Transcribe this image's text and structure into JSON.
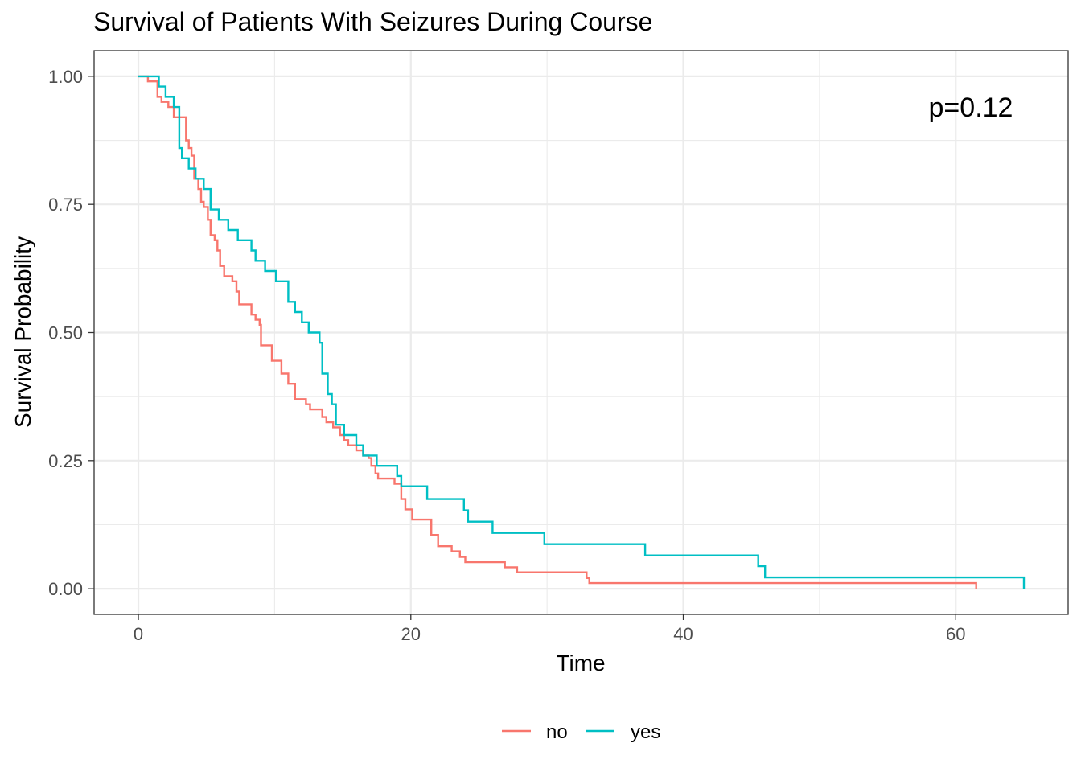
{
  "chart_data": {
    "type": "line",
    "subtype": "kaplan-meier step",
    "title": "Survival of Patients With Seizures During Course",
    "xlabel": "Time",
    "ylabel": "Survival Probability",
    "xlim": [
      -3.25,
      68.25
    ],
    "ylim": [
      -0.05,
      1.05
    ],
    "x_ticks": [
      0,
      20,
      40,
      60
    ],
    "y_ticks": [
      0,
      0.25,
      0.5,
      0.75,
      1
    ],
    "y_tick_labels": [
      "0.00",
      "0.25",
      "0.50",
      "0.75",
      "1.00"
    ],
    "x_tick_labels": [
      "0",
      "20",
      "40",
      "60"
    ],
    "grid": true,
    "legend_position": "bottom",
    "annotation": "p=0.12",
    "series": [
      {
        "name": "no",
        "color": "#F8766D",
        "points": [
          [
            0,
            1
          ],
          [
            0.7,
            1
          ],
          [
            0.7,
            0.99
          ],
          [
            1.4,
            0.99
          ],
          [
            1.4,
            0.96
          ],
          [
            1.7,
            0.96
          ],
          [
            1.7,
            0.95
          ],
          [
            2.2,
            0.95
          ],
          [
            2.2,
            0.94
          ],
          [
            2.6,
            0.94
          ],
          [
            2.6,
            0.92
          ],
          [
            3.5,
            0.92
          ],
          [
            3.5,
            0.875
          ],
          [
            3.7,
            0.875
          ],
          [
            3.7,
            0.86
          ],
          [
            3.9,
            0.86
          ],
          [
            3.9,
            0.845
          ],
          [
            4.1,
            0.845
          ],
          [
            4.1,
            0.8
          ],
          [
            4.4,
            0.8
          ],
          [
            4.4,
            0.78
          ],
          [
            4.6,
            0.78
          ],
          [
            4.6,
            0.755
          ],
          [
            4.8,
            0.755
          ],
          [
            4.8,
            0.745
          ],
          [
            5.1,
            0.745
          ],
          [
            5.1,
            0.72
          ],
          [
            5.3,
            0.72
          ],
          [
            5.3,
            0.69
          ],
          [
            5.6,
            0.69
          ],
          [
            5.6,
            0.68
          ],
          [
            5.8,
            0.68
          ],
          [
            5.8,
            0.66
          ],
          [
            6.0,
            0.66
          ],
          [
            6.0,
            0.63
          ],
          [
            6.3,
            0.63
          ],
          [
            6.3,
            0.61
          ],
          [
            6.9,
            0.61
          ],
          [
            6.9,
            0.6
          ],
          [
            7.2,
            0.6
          ],
          [
            7.2,
            0.58
          ],
          [
            7.4,
            0.58
          ],
          [
            7.4,
            0.555
          ],
          [
            8.3,
            0.555
          ],
          [
            8.3,
            0.535
          ],
          [
            8.6,
            0.535
          ],
          [
            8.6,
            0.525
          ],
          [
            8.9,
            0.525
          ],
          [
            8.9,
            0.515
          ],
          [
            9.0,
            0.515
          ],
          [
            9.0,
            0.475
          ],
          [
            9.8,
            0.475
          ],
          [
            9.8,
            0.445
          ],
          [
            10.5,
            0.445
          ],
          [
            10.5,
            0.42
          ],
          [
            11.0,
            0.42
          ],
          [
            11.0,
            0.4
          ],
          [
            11.5,
            0.4
          ],
          [
            11.5,
            0.37
          ],
          [
            12.3,
            0.37
          ],
          [
            12.3,
            0.36
          ],
          [
            12.6,
            0.36
          ],
          [
            12.6,
            0.35
          ],
          [
            13.5,
            0.35
          ],
          [
            13.5,
            0.335
          ],
          [
            13.8,
            0.335
          ],
          [
            13.8,
            0.325
          ],
          [
            14.3,
            0.325
          ],
          [
            14.3,
            0.315
          ],
          [
            14.8,
            0.315
          ],
          [
            14.8,
            0.3
          ],
          [
            15.1,
            0.3
          ],
          [
            15.1,
            0.29
          ],
          [
            15.4,
            0.29
          ],
          [
            15.4,
            0.28
          ],
          [
            16.0,
            0.28
          ],
          [
            16.0,
            0.27
          ],
          [
            16.5,
            0.27
          ],
          [
            16.5,
            0.26
          ],
          [
            16.9,
            0.26
          ],
          [
            16.9,
            0.255
          ],
          [
            17.1,
            0.255
          ],
          [
            17.1,
            0.24
          ],
          [
            17.4,
            0.24
          ],
          [
            17.4,
            0.225
          ],
          [
            17.6,
            0.225
          ],
          [
            17.6,
            0.215
          ],
          [
            18.8,
            0.215
          ],
          [
            18.8,
            0.205
          ],
          [
            19.3,
            0.205
          ],
          [
            19.3,
            0.175
          ],
          [
            19.6,
            0.175
          ],
          [
            19.6,
            0.155
          ],
          [
            20.1,
            0.155
          ],
          [
            20.1,
            0.135
          ],
          [
            21.5,
            0.135
          ],
          [
            21.5,
            0.105
          ],
          [
            22.0,
            0.105
          ],
          [
            22.0,
            0.083
          ],
          [
            23.0,
            0.083
          ],
          [
            23.0,
            0.073
          ],
          [
            23.6,
            0.073
          ],
          [
            23.6,
            0.062
          ],
          [
            24.0,
            0.062
          ],
          [
            24.0,
            0.052
          ],
          [
            26.9,
            0.052
          ],
          [
            26.9,
            0.042
          ],
          [
            27.8,
            0.042
          ],
          [
            27.8,
            0.032
          ],
          [
            32.9,
            0.032
          ],
          [
            32.9,
            0.021
          ],
          [
            33.1,
            0.021
          ],
          [
            33.1,
            0.011
          ],
          [
            61.5,
            0.011
          ],
          [
            61.5,
            0.0
          ]
        ]
      },
      {
        "name": "yes",
        "color": "#00BFC4",
        "points": [
          [
            0,
            1
          ],
          [
            1.5,
            1
          ],
          [
            1.5,
            0.98
          ],
          [
            2.0,
            0.98
          ],
          [
            2.0,
            0.96
          ],
          [
            2.6,
            0.96
          ],
          [
            2.6,
            0.94
          ],
          [
            3.0,
            0.94
          ],
          [
            3.0,
            0.86
          ],
          [
            3.2,
            0.86
          ],
          [
            3.2,
            0.84
          ],
          [
            3.7,
            0.84
          ],
          [
            3.7,
            0.82
          ],
          [
            4.2,
            0.82
          ],
          [
            4.2,
            0.8
          ],
          [
            4.8,
            0.8
          ],
          [
            4.8,
            0.78
          ],
          [
            5.3,
            0.78
          ],
          [
            5.3,
            0.74
          ],
          [
            5.9,
            0.74
          ],
          [
            5.9,
            0.72
          ],
          [
            6.6,
            0.72
          ],
          [
            6.6,
            0.7
          ],
          [
            7.3,
            0.7
          ],
          [
            7.3,
            0.68
          ],
          [
            8.3,
            0.68
          ],
          [
            8.3,
            0.66
          ],
          [
            8.6,
            0.66
          ],
          [
            8.6,
            0.64
          ],
          [
            9.3,
            0.64
          ],
          [
            9.3,
            0.62
          ],
          [
            10.1,
            0.62
          ],
          [
            10.1,
            0.6
          ],
          [
            11.0,
            0.6
          ],
          [
            11.0,
            0.56
          ],
          [
            11.5,
            0.56
          ],
          [
            11.5,
            0.54
          ],
          [
            12.0,
            0.54
          ],
          [
            12.0,
            0.52
          ],
          [
            12.5,
            0.52
          ],
          [
            12.5,
            0.5
          ],
          [
            13.3,
            0.5
          ],
          [
            13.3,
            0.48
          ],
          [
            13.5,
            0.48
          ],
          [
            13.5,
            0.42
          ],
          [
            13.9,
            0.42
          ],
          [
            13.9,
            0.38
          ],
          [
            14.2,
            0.38
          ],
          [
            14.2,
            0.36
          ],
          [
            14.5,
            0.36
          ],
          [
            14.5,
            0.32
          ],
          [
            15.1,
            0.32
          ],
          [
            15.1,
            0.3
          ],
          [
            16.0,
            0.3
          ],
          [
            16.0,
            0.28
          ],
          [
            16.5,
            0.28
          ],
          [
            16.5,
            0.26
          ],
          [
            17.5,
            0.26
          ],
          [
            17.5,
            0.24
          ],
          [
            19.0,
            0.24
          ],
          [
            19.0,
            0.22
          ],
          [
            19.3,
            0.22
          ],
          [
            19.3,
            0.2
          ],
          [
            21.2,
            0.2
          ],
          [
            21.2,
            0.175
          ],
          [
            23.9,
            0.175
          ],
          [
            23.9,
            0.153
          ],
          [
            24.2,
            0.153
          ],
          [
            24.2,
            0.131
          ],
          [
            26.0,
            0.131
          ],
          [
            26.0,
            0.109
          ],
          [
            29.8,
            0.109
          ],
          [
            29.8,
            0.087
          ],
          [
            37.2,
            0.087
          ],
          [
            37.2,
            0.065
          ],
          [
            45.5,
            0.065
          ],
          [
            45.5,
            0.044
          ],
          [
            46.0,
            0.044
          ],
          [
            46.0,
            0.022
          ],
          [
            65.0,
            0.022
          ],
          [
            65.0,
            0.0
          ]
        ]
      }
    ]
  }
}
